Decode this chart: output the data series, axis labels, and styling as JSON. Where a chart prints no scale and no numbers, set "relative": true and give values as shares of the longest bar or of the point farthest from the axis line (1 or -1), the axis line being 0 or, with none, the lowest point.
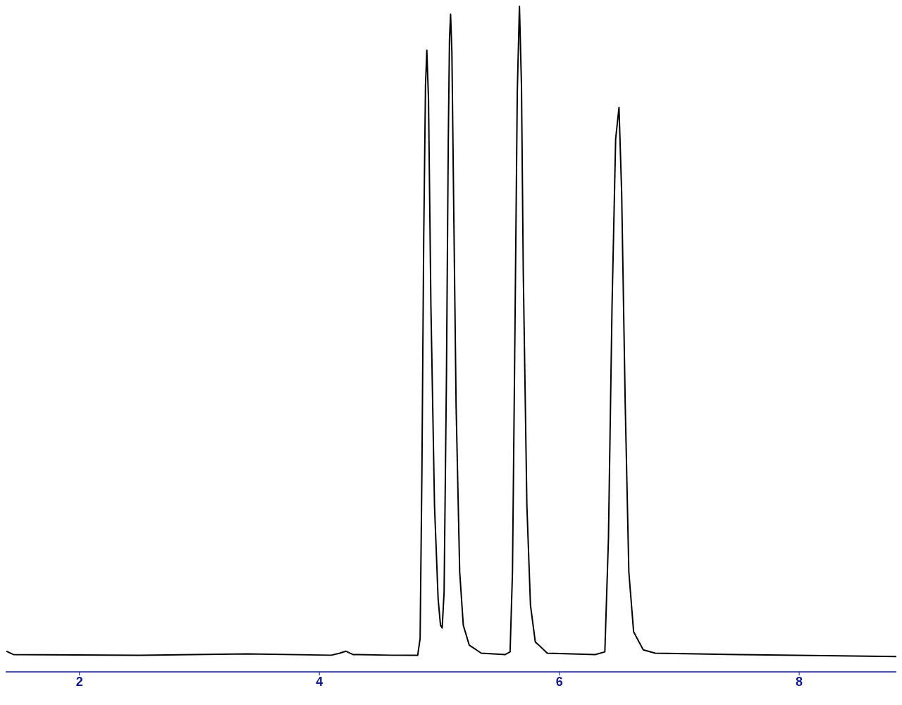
{
  "chart_data": {
    "type": "line",
    "relative": true,
    "xlim": [
      1.385,
      8.81
    ],
    "xticks": [
      2,
      4,
      6,
      8
    ],
    "marker": "none",
    "line_style": "solid",
    "series": [
      {
        "color": "#000000",
        "x": [
          1.39,
          1.45,
          2.5,
          3.4,
          4.1,
          4.17,
          4.22,
          4.28,
          4.6,
          4.82,
          4.84,
          4.855,
          4.87,
          4.885,
          4.896,
          4.91,
          4.93,
          4.96,
          4.99,
          5.01,
          5.024,
          5.04,
          5.06,
          5.075,
          5.085,
          5.094,
          5.105,
          5.12,
          5.14,
          5.17,
          5.2,
          5.25,
          5.35,
          5.55,
          5.59,
          5.61,
          5.63,
          5.65,
          5.668,
          5.685,
          5.7,
          5.73,
          5.76,
          5.8,
          5.9,
          6.3,
          6.38,
          6.41,
          6.44,
          6.47,
          6.498,
          6.52,
          6.55,
          6.58,
          6.62,
          6.7,
          6.8,
          7.5,
          8.81
        ],
        "values": [
          0.031,
          0.026,
          0.025,
          0.027,
          0.025,
          0.028,
          0.031,
          0.026,
          0.025,
          0.025,
          0.05,
          0.3,
          0.65,
          0.88,
          0.933,
          0.86,
          0.55,
          0.25,
          0.11,
          0.07,
          0.066,
          0.12,
          0.45,
          0.8,
          0.95,
          0.987,
          0.93,
          0.7,
          0.4,
          0.15,
          0.07,
          0.04,
          0.028,
          0.026,
          0.03,
          0.15,
          0.5,
          0.87,
          1,
          0.88,
          0.6,
          0.25,
          0.1,
          0.045,
          0.028,
          0.026,
          0.03,
          0.2,
          0.55,
          0.8,
          0.847,
          0.72,
          0.4,
          0.15,
          0.06,
          0.033,
          0.028,
          0.026,
          0.023
        ]
      }
    ]
  }
}
